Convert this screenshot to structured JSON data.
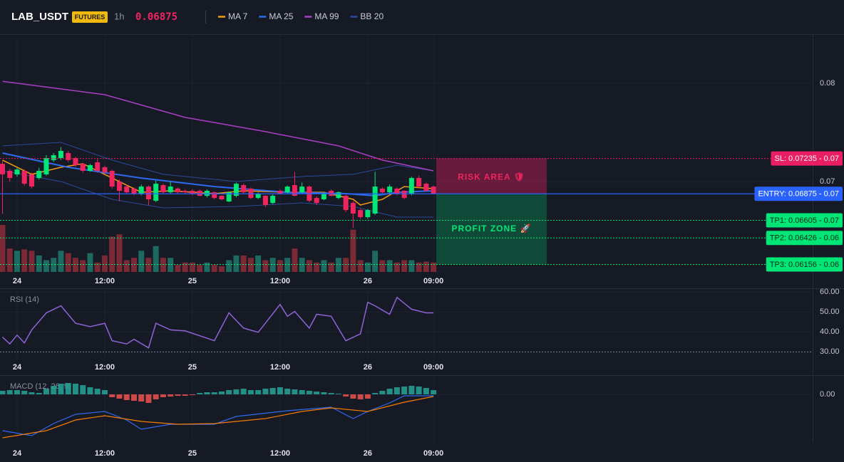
{
  "header": {
    "symbol": "LAB_USDT",
    "badge": "FUTURES",
    "interval": "1h",
    "price": 0.06875
  },
  "chart_data": [
    {
      "type": "candlestick",
      "xlim": [
        -2.34,
        108.9
      ],
      "xticks": [
        {
          "value": 0,
          "label": "24"
        },
        {
          "value": 12,
          "label": "12:00"
        },
        {
          "value": 24,
          "label": "25"
        },
        {
          "value": 36,
          "label": "12:00"
        },
        {
          "value": 48,
          "label": "26"
        },
        {
          "value": 57,
          "label": "09:00"
        }
      ],
      "ylim": [
        0.0608,
        0.085
      ],
      "yticks": [
        0.07,
        0.08
      ],
      "up_color": "#00e676",
      "down_color": "#f0245e",
      "volume_up_color": "#1d6b60",
      "volume_down_color": "#7c2936",
      "candles": {
        "x": [
          -2,
          -1,
          0,
          1,
          2,
          3,
          4,
          5,
          6,
          7,
          8,
          9,
          10,
          11,
          12,
          13,
          14,
          15,
          16,
          17,
          18,
          19,
          20,
          21,
          22,
          23,
          24,
          25,
          26,
          27,
          28,
          29,
          30,
          31,
          32,
          33,
          34,
          35,
          36,
          37,
          38,
          39,
          40,
          41,
          42,
          43,
          44,
          45,
          46,
          47,
          48,
          49,
          50,
          51,
          52,
          53,
          54,
          55,
          56,
          57
        ],
        "open": [
          0.07181,
          0.07109,
          0.07073,
          0.07109,
          0.07073,
          0.07036,
          0.07073,
          0.07218,
          0.07239,
          0.0729,
          0.07239,
          0.07181,
          0.07109,
          0.07196,
          0.07145,
          0.07109,
          0.07,
          0.06949,
          0.06928,
          0.06877,
          0.06949,
          0.06804,
          0.06964,
          0.06891,
          0.06928,
          0.06906,
          0.06906,
          0.06906,
          0.06855,
          0.06891,
          0.06855,
          0.06797,
          0.06855,
          0.06964,
          0.06928,
          0.06833,
          0.06855,
          0.06783,
          0.06906,
          0.06891,
          0.06964,
          0.06891,
          0.06949,
          0.06833,
          0.06819,
          0.06906,
          0.06833,
          0.06855,
          0.06783,
          0.0671,
          0.06638,
          0.06674,
          0.06928,
          0.06891,
          0.06928,
          0.06906,
          0.06877,
          0.07036,
          0.06978,
          0.06949
        ],
        "high": [
          0.0721,
          0.0713,
          0.0714,
          0.0712,
          0.0709,
          0.0714,
          0.0727,
          0.0729,
          0.0735,
          0.0731,
          0.0725,
          0.0719,
          0.0718,
          0.0723,
          0.0716,
          0.0712,
          0.0702,
          0.0697,
          0.0694,
          0.0697,
          0.0696,
          0.0701,
          0.0698,
          0.07,
          0.0694,
          0.0692,
          0.0692,
          0.0692,
          0.0692,
          0.069,
          0.0686,
          0.069,
          0.0699,
          0.0698,
          0.0694,
          0.0689,
          0.0686,
          0.0687,
          0.0692,
          0.0696,
          0.071,
          0.0699,
          0.0696,
          0.0685,
          0.0689,
          0.0692,
          0.069,
          0.0687,
          0.068,
          0.0672,
          0.0672,
          0.071,
          0.0694,
          0.0697,
          0.0694,
          0.0691,
          0.0705,
          0.0706,
          0.0699,
          0.0696
        ],
        "low": [
          0.0667,
          0.07,
          0.0705,
          0.0696,
          0.0693,
          0.0702,
          0.0706,
          0.072,
          0.0722,
          0.072,
          0.0715,
          0.0709,
          0.071,
          0.0709,
          0.0708,
          0.0693,
          0.068,
          0.0687,
          0.0686,
          0.0686,
          0.0676,
          0.0679,
          0.0688,
          0.0688,
          0.0688,
          0.0688,
          0.0686,
          0.0685,
          0.0684,
          0.0682,
          0.0681,
          0.0679,
          0.0684,
          0.0688,
          0.0682,
          0.0682,
          0.0674,
          0.0677,
          0.0687,
          0.0688,
          0.0685,
          0.0688,
          0.0679,
          0.0676,
          0.0681,
          0.0685,
          0.0682,
          0.0669,
          0.0653,
          0.0662,
          0.0662,
          0.0666,
          0.0688,
          0.0688,
          0.0686,
          0.0682,
          0.0686,
          0.0694,
          0.069,
          0.0688
        ],
        "close": [
          0.07073,
          0.07036,
          0.07123,
          0.06978,
          0.06949,
          0.07109,
          0.07239,
          0.07268,
          0.07312,
          0.07218,
          0.07167,
          0.07109,
          0.07167,
          0.07109,
          0.07094,
          0.06949,
          0.06906,
          0.06891,
          0.06877,
          0.06949,
          0.06819,
          0.06978,
          0.06891,
          0.06949,
          0.06891,
          0.06891,
          0.06877,
          0.06855,
          0.06906,
          0.06833,
          0.06819,
          0.06891,
          0.06978,
          0.06891,
          0.06833,
          0.06877,
          0.06761,
          0.06855,
          0.06877,
          0.06949,
          0.06855,
          0.06949,
          0.06804,
          0.06783,
          0.06877,
          0.06855,
          0.06891,
          0.0671,
          0.06674,
          0.06638,
          0.0671,
          0.06949,
          0.06891,
          0.06949,
          0.06877,
          0.06833,
          0.07036,
          0.06949,
          0.06906,
          0.06875
        ]
      },
      "volume": [
        100,
        50,
        45,
        48,
        45,
        35,
        25,
        30,
        45,
        40,
        30,
        25,
        40,
        20,
        35,
        75,
        80,
        25,
        30,
        45,
        30,
        55,
        30,
        30,
        15,
        20,
        20,
        15,
        20,
        15,
        12,
        25,
        35,
        35,
        30,
        35,
        25,
        30,
        25,
        30,
        50,
        30,
        25,
        20,
        25,
        20,
        30,
        30,
        90,
        25,
        20,
        45,
        25,
        25,
        20,
        25,
        25,
        20,
        22,
        20
      ],
      "series": [
        {
          "name": "MA 7",
          "color": "#f39c12",
          "x": [
            -2,
            2,
            6,
            9,
            13,
            17,
            21,
            27,
            31,
            37,
            42,
            46,
            47,
            50,
            53,
            57
          ],
          "values": [
            0.07218,
            0.07073,
            0.07145,
            0.07181,
            0.07036,
            0.06891,
            0.06906,
            0.06877,
            0.06906,
            0.06891,
            0.06891,
            0.06819,
            0.06761,
            0.06819,
            0.06949,
            0.06928
          ]
        },
        {
          "name": "MA 25",
          "color": "#2f6bf0",
          "x": [
            -2,
            7,
            17,
            27,
            37,
            45,
            49,
            52,
            57
          ],
          "values": [
            0.0729,
            0.07145,
            0.07036,
            0.06949,
            0.06891,
            0.06877,
            0.06855,
            0.06891,
            0.06906
          ]
        },
        {
          "name": "MA 99",
          "color": "#a93fc4",
          "x": [
            -2,
            12,
            23,
            34,
            44,
            50,
            57
          ],
          "values": [
            0.0802,
            0.07884,
            0.07653,
            0.07508,
            0.07363,
            0.07218,
            0.07109
          ]
        }
      ],
      "bands": {
        "name": "BB 20",
        "color": "#2a4a9a",
        "x": [
          -2,
          6,
          13,
          20,
          30,
          39,
          46,
          52,
          57
        ],
        "upper": [
          0.07363,
          0.07399,
          0.07218,
          0.07073,
          0.07,
          0.07051,
          0.07073,
          0.07167,
          0.07109
        ],
        "lower": [
          0.07109,
          0.07,
          0.06819,
          0.06732,
          0.06746,
          0.06783,
          0.06746,
          0.06638,
          0.06638
        ]
      },
      "levels": [
        {
          "label": "SL: 0.07235 - 0.07",
          "value": 0.07235,
          "color": "#e91e63"
        },
        {
          "label": "ENTRY: 0.06875 - 0.07",
          "value": 0.06875,
          "color": "#2962ff"
        },
        {
          "label": "TP1: 0.06605 - 0.07",
          "value": 0.06605,
          "color": "#00e676"
        },
        {
          "label": "TP2: 0.06426 - 0.06",
          "value": 0.06426,
          "color": "#00e676"
        },
        {
          "label": "TP3: 0.06156 - 0.06",
          "value": 0.06156,
          "color": "#00e676"
        }
      ],
      "zones": [
        "RISK AREA 🛡",
        "PROFIT ZONE 🚀"
      ]
    },
    {
      "type": "line",
      "title": "RSI (14)",
      "xlim": [
        -2.34,
        108.9
      ],
      "ylim": [
        26.2,
        60.7
      ],
      "yticks": [
        {
          "value": 60,
          "label": "60.00"
        },
        {
          "value": 50,
          "label": "50.00"
        },
        {
          "value": 40,
          "label": "40.00"
        },
        {
          "value": 30,
          "label": "30.00"
        }
      ],
      "series": [
        {
          "color": "#8e63d6",
          "x": [
            -2,
            -1,
            0,
            1,
            2,
            4,
            6,
            8,
            10,
            12,
            13,
            15,
            16,
            18,
            19,
            21,
            23,
            27,
            29,
            31,
            33,
            36,
            37,
            38,
            40,
            41,
            43,
            45,
            47,
            48,
            49,
            51,
            52,
            54,
            56,
            57
          ],
          "values": [
            37.4,
            34,
            38.4,
            34.5,
            41,
            49.5,
            53,
            44.3,
            42.6,
            44.3,
            35.6,
            34,
            36.3,
            32,
            44.3,
            41,
            40.5,
            35.6,
            49.5,
            41.9,
            39.8,
            53.7,
            47.8,
            50.2,
            41.9,
            48.8,
            47.8,
            35.6,
            39,
            54.8,
            53,
            48.8,
            57.2,
            51.3,
            49.5,
            49.5
          ]
        }
      ]
    },
    {
      "type": "macd",
      "title": "MACD (12, 26, 9)",
      "xlim": [
        -2.34,
        108.9
      ],
      "ylim": [
        -0.00068,
        0.00024
      ],
      "yticks": [
        {
          "value": 0,
          "label": "0.00"
        }
      ],
      "up_color": "#26a69a",
      "down_color": "#ef5350",
      "histogram": {
        "x": [
          -2,
          -1,
          0,
          1,
          2,
          3,
          4,
          5,
          6,
          7,
          8,
          9,
          10,
          11,
          12,
          13,
          14,
          15,
          16,
          17,
          18,
          19,
          20,
          21,
          22,
          23,
          24,
          25,
          26,
          27,
          28,
          29,
          30,
          31,
          32,
          33,
          34,
          35,
          36,
          37,
          38,
          39,
          40,
          41,
          42,
          43,
          44,
          45,
          46,
          47,
          48,
          49,
          50,
          51,
          52,
          53,
          54,
          55,
          56,
          57
        ],
        "values": [
          5e-05,
          6e-05,
          6e-05,
          5e-05,
          3e-05,
          2e-05,
          8e-05,
          0.00012,
          0.00015,
          0.00016,
          0.00015,
          0.00013,
          0.0001,
          8e-05,
          6e-05,
          -4e-05,
          -6e-05,
          -8e-05,
          -9e-05,
          -0.0001,
          -0.00012,
          -7e-05,
          -4e-05,
          -3e-05,
          -2e-05,
          -2e-05,
          -1e-05,
          2e-05,
          3e-05,
          3e-05,
          4e-05,
          6e-05,
          7e-05,
          8e-05,
          6e-05,
          6e-05,
          8e-05,
          9e-05,
          0.0001,
          8e-05,
          7e-05,
          6e-05,
          5e-05,
          4e-05,
          3e-05,
          2e-05,
          1e-05,
          -3e-05,
          -6e-05,
          -7e-05,
          -6e-05,
          2e-05,
          5e-05,
          8e-05,
          0.0001,
          0.00011,
          0.00012,
          0.00011,
          9e-05,
          6e-05
        ]
      },
      "series": [
        {
          "color": "#2f6bf0",
          "x": [
            -2,
            2,
            5,
            8,
            12,
            15,
            17,
            21,
            27,
            30,
            37,
            43,
            46,
            48,
            51,
            53,
            57
          ],
          "values": [
            -0.00051,
            -0.00058,
            -0.00041,
            -0.00028,
            -0.00024,
            -0.00036,
            -0.00049,
            -0.00042,
            -0.00042,
            -0.00031,
            -0.00023,
            -0.00018,
            -0.00034,
            -0.00024,
            -0.00012,
            -2e-05,
            -2e-05
          ]
        },
        {
          "color": "#f57c00",
          "x": [
            -2,
            4,
            8,
            12,
            17,
            22,
            27,
            34,
            39,
            43,
            48,
            53,
            57
          ],
          "values": [
            -0.00061,
            -0.00051,
            -0.00036,
            -0.0003,
            -0.00038,
            -0.00042,
            -0.00041,
            -0.00034,
            -0.00024,
            -0.00019,
            -0.00024,
            -0.00011,
            -3e-05
          ]
        }
      ]
    }
  ]
}
